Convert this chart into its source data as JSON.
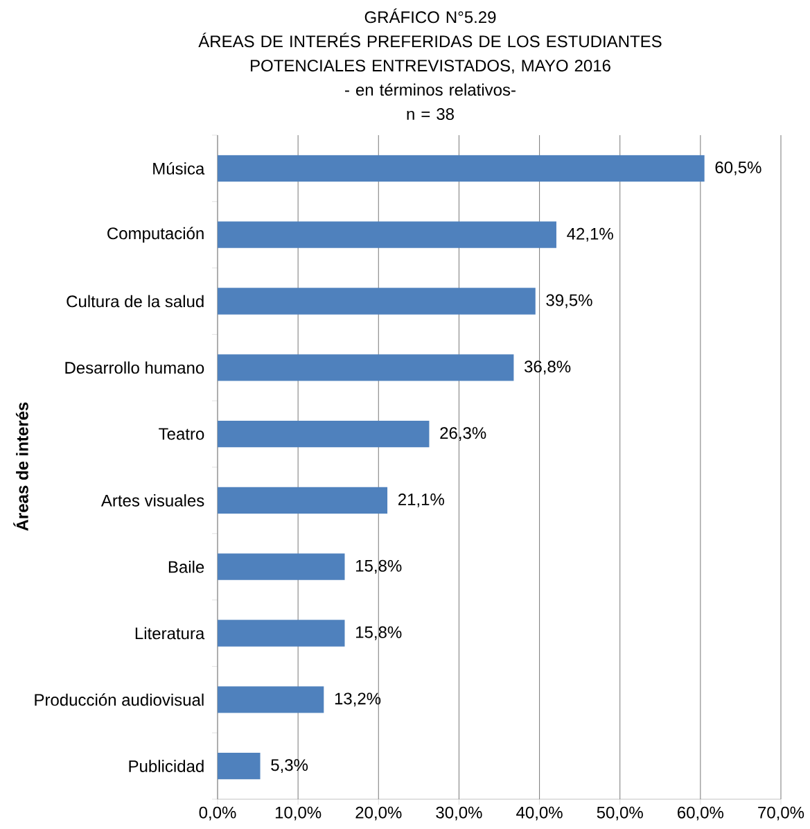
{
  "chart_data": {
    "type": "bar",
    "orientation": "horizontal",
    "title": "GRÁFICO N°5.29",
    "subtitle": "ÁREAS DE INTERÉS PREFERIDAS DE LOS ESTUDIANTES POTENCIALES ENTREVISTADOS, MAYO 2016",
    "annotations": [
      "- en términos relativos-",
      "n = 38"
    ],
    "ylabel": "**Áreas de interés**",
    "categories": [
      "Música",
      "Computación",
      "Cultura de la salud",
      "Desarrollo humano",
      "Teatro",
      "Artes visuales",
      "Baile",
      "Literatura",
      "Producción audiovisual",
      "Publicidad"
    ],
    "values": [
      60.5,
      42.1,
      39.5,
      36.8,
      26.3,
      21.1,
      15.8,
      15.8,
      13.2,
      5.3
    ],
    "value_labels": [
      "60,5%",
      "42,1%",
      "39,5%",
      "36,8%",
      "26,3%",
      "21,1%",
      "15,8%",
      "15,8%",
      "13,2%",
      "5,3%"
    ],
    "color": "#4f81bd",
    "xlim": [
      0,
      70
    ],
    "xticks": [
      {
        "value": 0,
        "label": "0,0%"
      },
      {
        "value": 10,
        "label": "10,0%"
      },
      {
        "value": 20,
        "label": "20,0%"
      },
      {
        "value": 30,
        "label": "30,0%"
      },
      {
        "value": 40,
        "label": "40,0%"
      },
      {
        "value": 50,
        "label": "50,0%"
      },
      {
        "value": 60,
        "label": "60,0%"
      },
      {
        "value": 70,
        "label": "70,0%"
      }
    ],
    "grid": "x"
  }
}
